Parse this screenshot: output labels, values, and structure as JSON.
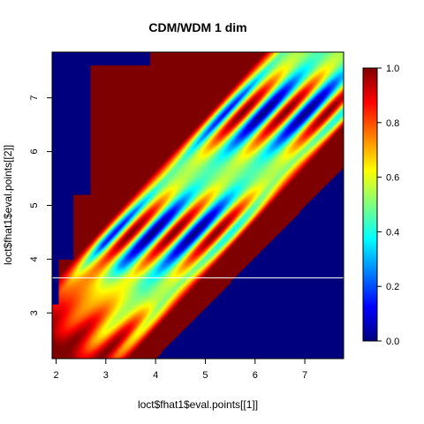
{
  "chart_data": {
    "type": "heatmap",
    "title": "CDM/WDM 1 dim",
    "xlabel": "loct$fhat1$eval.points[[1]]",
    "ylabel": "loct$fhat1$eval.points[[2]]",
    "xlim": [
      1.92,
      7.78
    ],
    "ylim": [
      2.15,
      7.85
    ],
    "x_ticks": [
      2,
      3,
      4,
      5,
      6,
      7
    ],
    "y_ticks": [
      3,
      4,
      5,
      6,
      7
    ],
    "colorbar": {
      "range": [
        0,
        1
      ],
      "ticks": [
        "0.0",
        "0.2",
        "0.4",
        "0.6",
        "0.8",
        "1.0"
      ],
      "colormap": "jet",
      "stops": [
        "#00007F",
        "#0000FF",
        "#007FFF",
        "#00FFFF",
        "#7FFF7F",
        "#FFFF00",
        "#FF7F00",
        "#FF0000",
        "#7F0000"
      ]
    },
    "reference_line": {
      "orientation": "horizontal",
      "y": 3.65,
      "color": "#ffffff"
    },
    "background_color": "#00007F",
    "grid": false,
    "legend": "right colorbar"
  }
}
